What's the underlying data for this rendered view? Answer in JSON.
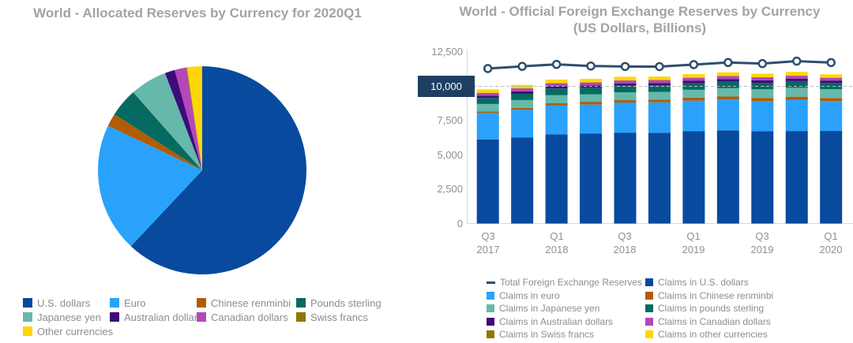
{
  "left_chart": {
    "title": "World - Allocated Reserves by Currency for 2020Q1"
  },
  "right_chart": {
    "title_line1": "World - Official Foreign Exchange Reserves by Currency",
    "title_line2": "(US Dollars, Billions)",
    "y_ticks": [
      "12,500",
      "10,000",
      "7,500",
      "5,000",
      "2,500",
      "0"
    ],
    "x_ticks": [
      [
        "Q3",
        "2017"
      ],
      [
        "Q1",
        "2018"
      ],
      [
        "Q3",
        "2018"
      ],
      [
        "Q1",
        "2019"
      ],
      [
        "Q3",
        "2019"
      ],
      [
        "Q1",
        "2020"
      ]
    ],
    "colors": {
      "highlight_tick_bg": "#1e3f63",
      "reference_line": "#b9b9b9",
      "axis_line": "#d8d8d8"
    }
  },
  "chart_data": [
    {
      "type": "pie",
      "title": "World - Allocated Reserves by Currency for 2020Q1",
      "start_angle_deg": -90,
      "direction": "clockwise",
      "slices": [
        {
          "label": "U.S. dollars",
          "percent": 61.99,
          "color": "#084a9e"
        },
        {
          "label": "Euro",
          "percent": 20.05,
          "color": "#2aa2fb"
        },
        {
          "label": "Chinese renminbi",
          "percent": 2.02,
          "color": "#b25c04"
        },
        {
          "label": "Pounds sterling",
          "percent": 4.43,
          "color": "#046a62"
        },
        {
          "label": "Japanese yen",
          "percent": 5.7,
          "color": "#66b8ab"
        },
        {
          "label": "Australian dollars",
          "percent": 1.55,
          "color": "#3c0d78"
        },
        {
          "label": "Canadian dollars",
          "percent": 1.78,
          "color": "#b447ba"
        },
        {
          "label": "Swiss francs",
          "percent": 0.15,
          "color": "#8e7903"
        },
        {
          "label": "Other currencies",
          "percent": 2.33,
          "color": "#ffd608"
        }
      ]
    },
    {
      "type": "bar",
      "subtype": "stacked-with-line",
      "title": "World - Official Foreign Exchange Reserves by Currency (US Dollars, Billions)",
      "categories": [
        "Q3 2017",
        "Q4 2017",
        "Q1 2018",
        "Q2 2018",
        "Q3 2018",
        "Q4 2018",
        "Q1 2019",
        "Q2 2019",
        "Q3 2019",
        "Q4 2019",
        "Q1 2020"
      ],
      "ylim": [
        0,
        12500
      ],
      "y_tick_step": 2500,
      "reference_line_value": 10000,
      "grid": "reference-line-only",
      "legend_position": "bottom",
      "line_series": {
        "name": "Total Foreign Exchange Reserves",
        "color": "#2d4d6e",
        "values": [
          11297,
          11457,
          11600,
          11483,
          11445,
          11438,
          11586,
          11737,
          11657,
          11838,
          11732
        ]
      },
      "stack_series": [
        {
          "name": "Claims in U.S. dollars",
          "color": "#084a9e",
          "values": [
            6126,
            6281,
            6500,
            6553,
            6630,
            6617,
            6740,
            6792,
            6732,
            6746,
            6750
          ]
        },
        {
          "name": "Claims in euro",
          "color": "#2aa2fb",
          "values": [
            1935,
            2019,
            2120,
            2129,
            2190,
            2218,
            2219,
            2243,
            2202,
            2276,
            2176
          ]
        },
        {
          "name": "Claims in Chinese renminbi",
          "color": "#b25c04",
          "values": [
            108,
            123,
            145,
            193,
            193,
            203,
            213,
            218,
            220,
            221,
            221
          ]
        },
        {
          "name": "Claims in Japanese yen",
          "color": "#66b8ab",
          "values": [
            546,
            577,
            591,
            548,
            552,
            558,
            578,
            612,
            632,
            655,
            650
          ]
        },
        {
          "name": "Claims in pounds sterling",
          "color": "#046a62",
          "values": [
            438,
            455,
            485,
            475,
            479,
            475,
            475,
            486,
            474,
            480,
            463
          ]
        },
        {
          "name": "Claims in Australian dollars",
          "color": "#3c0d78",
          "values": [
            167,
            180,
            180,
            177,
            175,
            172,
            178,
            183,
            180,
            187,
            163
          ]
        },
        {
          "name": "Claims in Canadian dollars",
          "color": "#b447ba",
          "values": [
            192,
            202,
            203,
            200,
            205,
            201,
            209,
            212,
            207,
            206,
            186
          ]
        },
        {
          "name": "Claims in Swiss francs",
          "color": "#8e7903",
          "values": [
            16,
            17,
            17,
            17,
            17,
            15,
            15,
            15,
            15,
            15,
            15
          ]
        },
        {
          "name": "Claims in other currencies",
          "color": "#ffd608",
          "values": [
            245,
            250,
            255,
            250,
            255,
            255,
            260,
            265,
            262,
            270,
            253
          ]
        }
      ]
    }
  ]
}
